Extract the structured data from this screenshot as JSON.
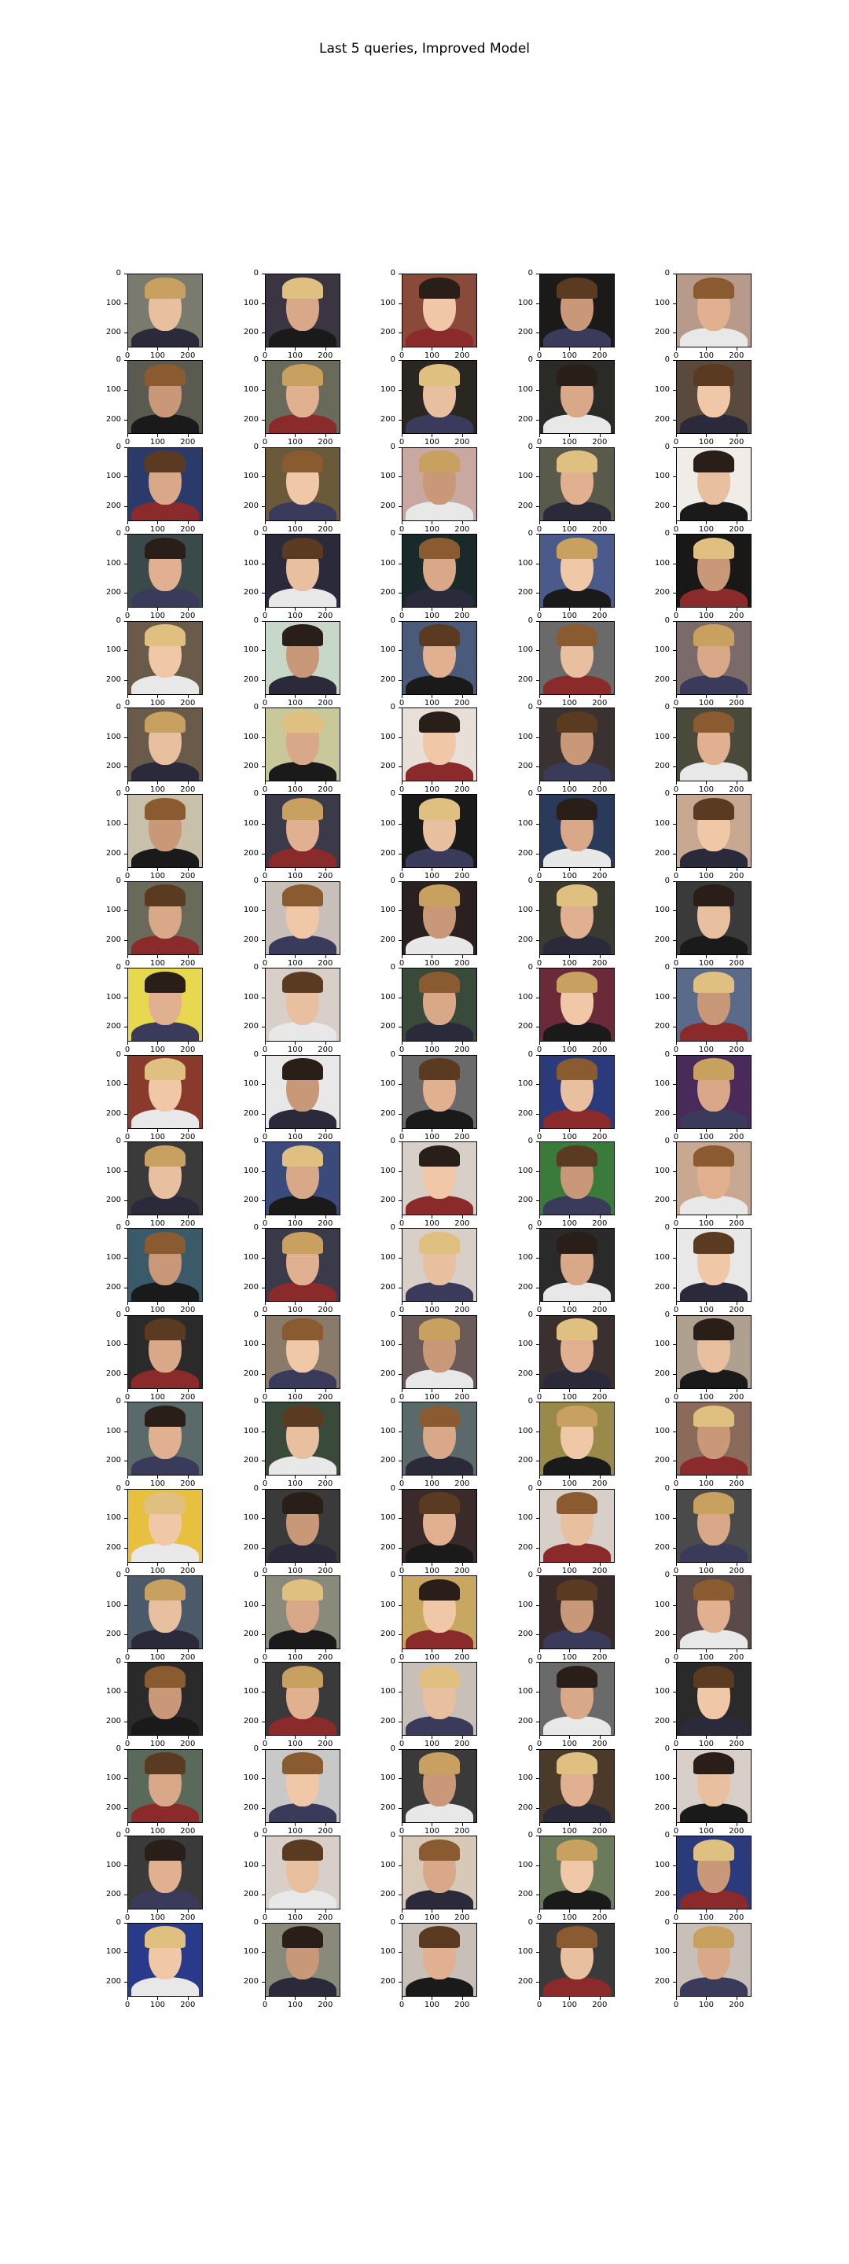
{
  "figure": {
    "title": "Last 5 queries, Improved Model",
    "x_ticks": [
      "0",
      "100",
      "200"
    ],
    "y_ticks": [
      "0",
      "100",
      "200"
    ],
    "x_tick_values": [
      0,
      100,
      200
    ],
    "y_tick_values": [
      0,
      100,
      200
    ],
    "image_extent": [
      250,
      250
    ],
    "columns": 5,
    "rows": 20,
    "panels": [
      [
        "#7a7a6e",
        "#3a3540",
        "#8a4a3a",
        "#1c1a18",
        "#b89a8a"
      ],
      [
        "#5a5a50",
        "#6a6a5a",
        "#2a2622",
        "#2a2a26",
        "#5a4a3e"
      ],
      [
        "#2a3a6a",
        "#6a5a3a",
        "#c8a8a0",
        "#5a5a4a",
        "#f0ece8"
      ],
      [
        "#3a4a4a",
        "#2a2a3a",
        "#1a2a2a",
        "#4a5a8a",
        "#1a1816"
      ],
      [
        "#6a5a4a",
        "#c8d8c8",
        "#4a5a7a",
        "#6a6a6a",
        "#7a6a6a"
      ],
      [
        "#6a5a4a",
        "#c8c89a",
        "#e8e0d8",
        "#3a3230",
        "#4a4a3a"
      ],
      [
        "#c8c0a8",
        "#3a3a4a",
        "#1a1a1a",
        "#2a3a5a",
        "#c8a890"
      ],
      [
        "#6a6a5a",
        "#c8c0b8",
        "#2a2020",
        "#3a3a30",
        "#3a3a3a"
      ],
      [
        "#e8d850",
        "#d8d0c8",
        "#3a4a3a",
        "#6a2a3a",
        "#5a6a8a"
      ],
      [
        "#8a3a2a",
        "#e8e8e8",
        "#6a6a6a",
        "#2a3a7a",
        "#4a2a5a"
      ],
      [
        "#3a3a3a",
        "#3a4a7a",
        "#d8d0c8",
        "#3a7a3a",
        "#c8a890"
      ],
      [
        "#3a5a6a",
        "#3a3a4a",
        "#d8d0c8",
        "#2a2a2a",
        "#e8e8e8"
      ],
      [
        "#2a2a2a",
        "#8a7a6a",
        "#6a5a5a",
        "#3a3030",
        "#b0a090"
      ],
      [
        "#5a6a6a",
        "#3a4a3a",
        "#5a6a6a",
        "#9a8a4a",
        "#8a6a5a"
      ],
      [
        "#e8c040",
        "#3a3a3a",
        "#3a2a2a",
        "#d8d0c8",
        "#4a4a4a"
      ],
      [
        "#4a5a6a",
        "#8a8a7a",
        "#c8a860",
        "#3a2a2a",
        "#5a4a4a"
      ],
      [
        "#2a2a2a",
        "#3a3a3a",
        "#c8c0b8",
        "#6a6a6a",
        "#2a2a2a"
      ],
      [
        "#5a6a5a",
        "#c8c8c8",
        "#3a3a3a",
        "#4a3a2a",
        "#d8d0c8"
      ],
      [
        "#3a3a3a",
        "#d8d0c8",
        "#d8c8b8",
        "#6a7a5a",
        "#2a3a7a"
      ],
      [
        "#2a3a8a",
        "#8a8a7a",
        "#c8c0b8",
        "#3a3a3a",
        "#c8c0b8"
      ]
    ]
  }
}
